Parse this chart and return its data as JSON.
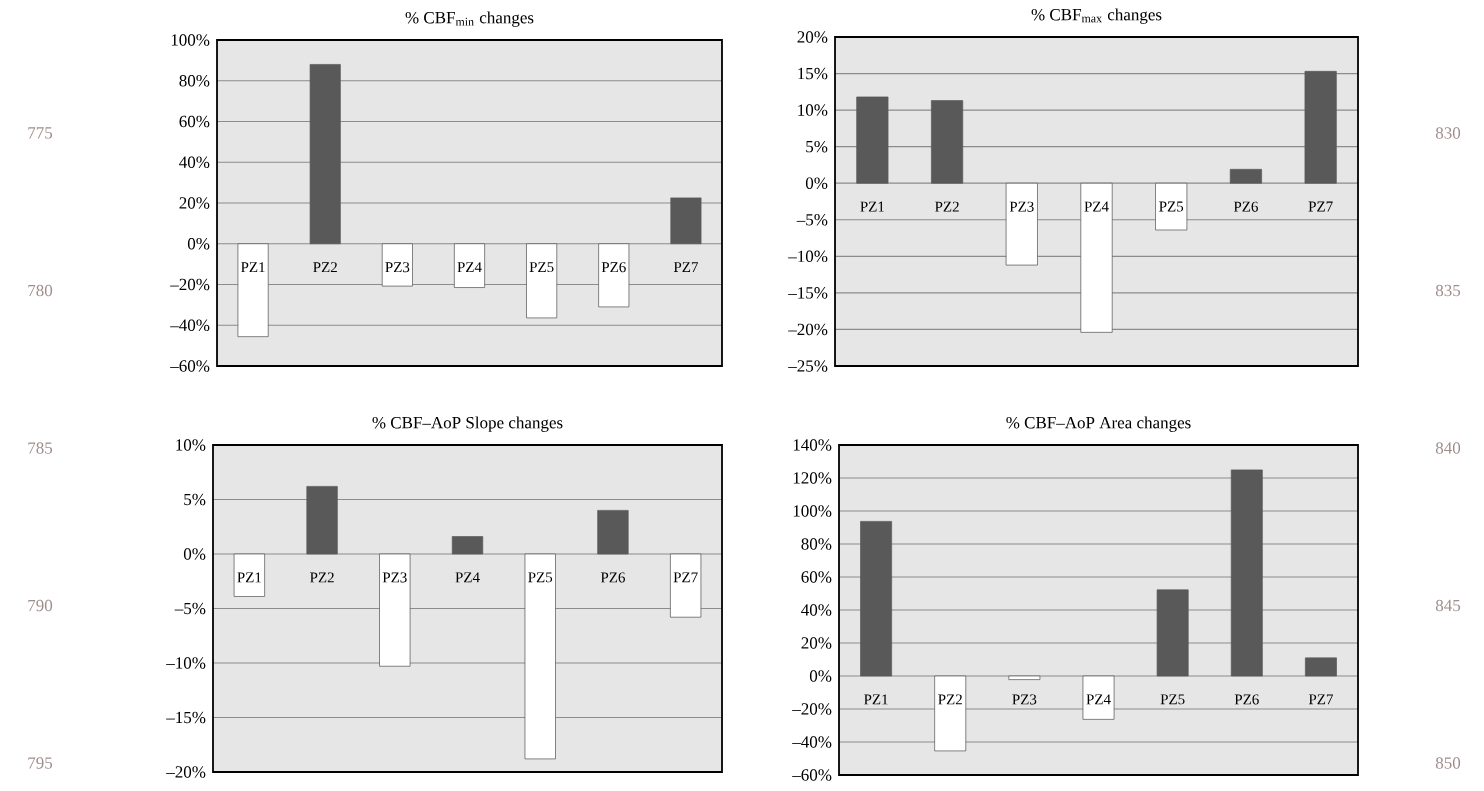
{
  "chart_data": [
    {
      "type": "bar",
      "title": "% CBF$_{min}$ changes",
      "categories": [
        "PZ1",
        "PZ2",
        "PZ3",
        "PZ4",
        "PZ5",
        "PZ6",
        "PZ7"
      ],
      "values": [
        -45.6,
        88,
        -20.8,
        -21.5,
        -36.4,
        -31,
        22.5
      ],
      "colors": [
        "#ffffff",
        "#595959",
        "#ffffff",
        "#ffffff",
        "#ffffff",
        "#ffffff",
        "#595959"
      ],
      "ylim": [
        -60,
        100
      ],
      "yticks": [
        {
          "value": -60,
          "label": "–60%"
        },
        {
          "value": -40,
          "label": "–40%"
        },
        {
          "value": -20,
          "label": "–20%"
        },
        {
          "value": 0,
          "label": "0%"
        },
        {
          "value": 20,
          "label": "20%"
        },
        {
          "value": 40,
          "label": "40%"
        },
        {
          "value": 60,
          "label": "60%"
        },
        {
          "value": 80,
          "label": "80%"
        },
        {
          "value": 100,
          "label": "100%"
        }
      ],
      "grid": "y",
      "annotations": [
        "775",
        "780"
      ]
    },
    {
      "type": "bar",
      "title": "% CBF$_{max}$ changes",
      "categories": [
        "PZ1",
        "PZ2",
        "PZ3",
        "PZ4",
        "PZ5",
        "PZ6",
        "PZ7"
      ],
      "values": [
        11.8,
        11.3,
        -11.2,
        -20.4,
        -6.4,
        1.9,
        15.3
      ],
      "colors": [
        "#595959",
        "#595959",
        "#ffffff",
        "#ffffff",
        "#ffffff",
        "#595959",
        "#595959"
      ],
      "ylim": [
        -25,
        20
      ],
      "yticks": [
        {
          "value": -25,
          "label": "–25%"
        },
        {
          "value": -20,
          "label": "–20%"
        },
        {
          "value": -15,
          "label": "–15%"
        },
        {
          "value": -10,
          "label": "–10%"
        },
        {
          "value": -5,
          "label": "–5%"
        },
        {
          "value": 0,
          "label": "0%"
        },
        {
          "value": 5,
          "label": "5%"
        },
        {
          "value": 10,
          "label": "10%"
        },
        {
          "value": 15,
          "label": "15%"
        },
        {
          "value": 20,
          "label": "20%"
        }
      ],
      "grid": "y",
      "annotations": [
        "830",
        "835"
      ]
    },
    {
      "type": "bar",
      "title": "% CBF–AoP Slope changes",
      "categories": [
        "PZ1",
        "PZ2",
        "PZ3",
        "PZ4",
        "PZ5",
        "PZ6",
        "PZ7"
      ],
      "values": [
        -3.9,
        6.2,
        -10.3,
        1.6,
        -18.8,
        4.0,
        -5.8
      ],
      "colors": [
        "#ffffff",
        "#595959",
        "#ffffff",
        "#595959",
        "#ffffff",
        "#595959",
        "#ffffff"
      ],
      "ylim": [
        -20,
        10
      ],
      "yticks": [
        {
          "value": -20,
          "label": "–20%"
        },
        {
          "value": -15,
          "label": "–15%"
        },
        {
          "value": -10,
          "label": "–10%"
        },
        {
          "value": -5,
          "label": "–5%"
        },
        {
          "value": 0,
          "label": "0%"
        },
        {
          "value": 5,
          "label": "5%"
        },
        {
          "value": 10,
          "label": "10%"
        }
      ],
      "grid": "y",
      "annotations": [
        "785",
        "790",
        "795"
      ]
    },
    {
      "type": "bar",
      "title": "% CBF–AoP Area changes",
      "categories": [
        "PZ1",
        "PZ2",
        "PZ3",
        "PZ4",
        "PZ5",
        "PZ6",
        "PZ7"
      ],
      "values": [
        93.7,
        -45.4,
        -2.2,
        -26.3,
        52.2,
        124.9,
        11
      ],
      "colors": [
        "#595959",
        "#ffffff",
        "#ffffff",
        "#ffffff",
        "#595959",
        "#595959",
        "#595959"
      ],
      "ylim": [
        -60,
        140
      ],
      "yticks": [
        {
          "value": -60,
          "label": "–60%"
        },
        {
          "value": -40,
          "label": "–40%"
        },
        {
          "value": -20,
          "label": "–20%"
        },
        {
          "value": 0,
          "label": "0%"
        },
        {
          "value": 20,
          "label": "20%"
        },
        {
          "value": 40,
          "label": "40%"
        },
        {
          "value": 60,
          "label": "60%"
        },
        {
          "value": 80,
          "label": "80%"
        },
        {
          "value": 100,
          "label": "100%"
        },
        {
          "value": 120,
          "label": "120%"
        },
        {
          "value": 140,
          "label": "140%"
        }
      ],
      "grid": "y",
      "annotations": [
        "840",
        "845",
        "850"
      ]
    }
  ]
}
